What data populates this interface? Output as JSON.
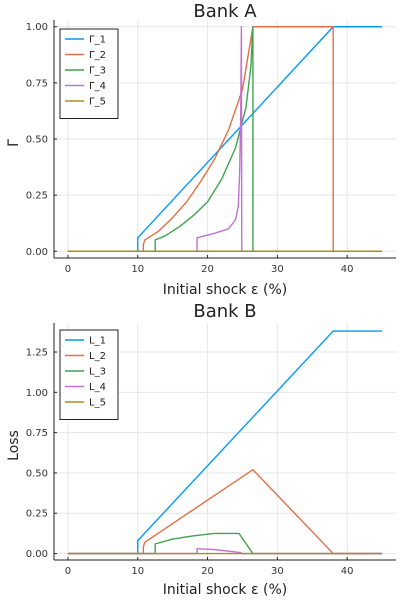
{
  "chart_data": [
    {
      "type": "line",
      "title": "Bank A",
      "xlabel": "Initial shock ε (%)",
      "ylabel": "Γ",
      "xlim": [
        -2,
        47
      ],
      "ylim": [
        -0.03,
        1.03
      ],
      "xticks": [
        0,
        10,
        20,
        30,
        40
      ],
      "yticks": [
        0.0,
        0.25,
        0.5,
        0.75,
        1.0
      ],
      "ytick_labels": [
        "0.00",
        "0.25",
        "0.50",
        "0.75",
        "1.00"
      ],
      "grid": true,
      "legend": "top-left",
      "series": [
        {
          "name": "Γ_1",
          "color": "#009AFA",
          "points": [
            [
              0,
              0
            ],
            [
              10,
              0
            ],
            [
              10,
              0.06
            ],
            [
              38,
              1.0
            ],
            [
              45,
              1.0
            ]
          ]
        },
        {
          "name": "Γ_2",
          "color": "#E36F47",
          "points": [
            [
              0,
              0
            ],
            [
              10.8,
              0
            ],
            [
              10.8,
              0.03
            ],
            [
              11,
              0.05
            ],
            [
              13,
              0.09
            ],
            [
              15,
              0.15
            ],
            [
              17,
              0.22
            ],
            [
              19,
              0.31
            ],
            [
              21,
              0.41
            ],
            [
              23,
              0.54
            ],
            [
              25,
              0.72
            ],
            [
              26.5,
              1.0
            ],
            [
              38,
              1.0
            ],
            [
              38,
              0
            ],
            [
              45,
              0
            ]
          ]
        },
        {
          "name": "Γ_3",
          "color": "#3EA44E",
          "points": [
            [
              0,
              0
            ],
            [
              12.5,
              0
            ],
            [
              12.5,
              0.05
            ],
            [
              14,
              0.07
            ],
            [
              16,
              0.11
            ],
            [
              18,
              0.16
            ],
            [
              20,
              0.22
            ],
            [
              22,
              0.32
            ],
            [
              24,
              0.46
            ],
            [
              25.5,
              0.64
            ],
            [
              26.2,
              0.82
            ],
            [
              26.5,
              1.0
            ],
            [
              26.5,
              0
            ],
            [
              45,
              0
            ]
          ]
        },
        {
          "name": "Γ_4",
          "color": "#C271D2",
          "points": [
            [
              0,
              0
            ],
            [
              18.5,
              0
            ],
            [
              18.5,
              0.06
            ],
            [
              21,
              0.08
            ],
            [
              23,
              0.1
            ],
            [
              24,
              0.14
            ],
            [
              24.4,
              0.2
            ],
            [
              24.6,
              0.35
            ],
            [
              24.75,
              0.6
            ],
            [
              24.85,
              1.0
            ],
            [
              24.9,
              0
            ],
            [
              45,
              0
            ]
          ]
        },
        {
          "name": "Γ_5",
          "color": "#AC8D18",
          "points": [
            [
              0,
              0
            ],
            [
              45,
              0
            ]
          ]
        }
      ]
    },
    {
      "type": "line",
      "title": "Bank B",
      "xlabel": "Initial shock ε (%)",
      "ylabel": "Loss",
      "xlim": [
        -2,
        47
      ],
      "ylim": [
        -0.04,
        1.43
      ],
      "xticks": [
        0,
        10,
        20,
        30,
        40
      ],
      "yticks": [
        0.0,
        0.25,
        0.5,
        0.75,
        1.0,
        1.25
      ],
      "ytick_labels": [
        "0.00",
        "0.25",
        "0.50",
        "0.75",
        "1.00",
        "1.25"
      ],
      "grid": true,
      "legend": "top-left",
      "series": [
        {
          "name": "L_1",
          "color": "#009AFA",
          "points": [
            [
              0,
              0
            ],
            [
              10,
              0
            ],
            [
              10,
              0.08
            ],
            [
              38,
              1.38
            ],
            [
              45,
              1.38
            ]
          ]
        },
        {
          "name": "L_2",
          "color": "#E36F47",
          "points": [
            [
              0,
              0
            ],
            [
              10.8,
              0
            ],
            [
              10.8,
              0.04
            ],
            [
              11,
              0.07
            ],
            [
              26.5,
              0.52
            ],
            [
              38,
              0
            ],
            [
              45,
              0
            ]
          ]
        },
        {
          "name": "L_3",
          "color": "#3EA44E",
          "points": [
            [
              0,
              0
            ],
            [
              12.5,
              0
            ],
            [
              12.5,
              0.06
            ],
            [
              15,
              0.09
            ],
            [
              18,
              0.11
            ],
            [
              21,
              0.125
            ],
            [
              24.5,
              0.125
            ],
            [
              26.5,
              0
            ],
            [
              45,
              0
            ]
          ]
        },
        {
          "name": "L_4",
          "color": "#C271D2",
          "points": [
            [
              0,
              0
            ],
            [
              18.5,
              0
            ],
            [
              18.5,
              0.03
            ],
            [
              21,
              0.025
            ],
            [
              23,
              0.015
            ],
            [
              24.8,
              0.005
            ],
            [
              24.9,
              0
            ],
            [
              45,
              0
            ]
          ]
        },
        {
          "name": "L_5",
          "color": "#AC8D18",
          "points": [
            [
              0,
              0
            ],
            [
              45,
              0
            ]
          ]
        }
      ]
    }
  ]
}
